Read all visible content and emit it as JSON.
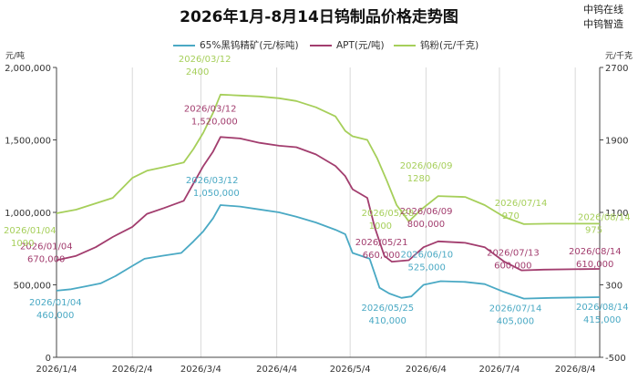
{
  "watermark": [
    "中钨在线",
    "中钨智造"
  ],
  "chart_data": {
    "type": "line",
    "title": "2026年1月-8月14日钨制品价格走势图",
    "left_axis": {
      "unit": "元/吨",
      "min": 0,
      "max": 2000000,
      "ticks": [
        "0",
        "500,000",
        "1,000,000",
        "1,500,000",
        "2,000,000"
      ]
    },
    "right_axis": {
      "unit": "元/千克",
      "min": -500,
      "max": 2700,
      "ticks": [
        "-500",
        "300",
        "1100",
        "1900",
        "2700"
      ]
    },
    "x_ticks": [
      "2026/1/4",
      "2026/2/4",
      "2026/3/4",
      "2026/4/4",
      "2026/5/4",
      "2026/6/4",
      "2026/7/4",
      "2026/8/4"
    ],
    "grid": "vertical",
    "legend_position": "top",
    "series": [
      {
        "name": "65%黑钨精矿(元/标吨)",
        "axis": "left",
        "color": "#4aa9c4",
        "points": [
          [
            "2026-01-04",
            460000
          ],
          [
            "2026-01-10",
            470000
          ],
          [
            "2026-01-16",
            490000
          ],
          [
            "2026-01-22",
            510000
          ],
          [
            "2026-01-28",
            560000
          ],
          [
            "2026-02-03",
            620000
          ],
          [
            "2026-02-09",
            680000
          ],
          [
            "2026-02-16",
            700000
          ],
          [
            "2026-02-24",
            720000
          ],
          [
            "2026-03-01",
            800000
          ],
          [
            "2026-03-05",
            870000
          ],
          [
            "2026-03-09",
            960000
          ],
          [
            "2026-03-12",
            1050000
          ],
          [
            "2026-03-20",
            1040000
          ],
          [
            "2026-03-28",
            1020000
          ],
          [
            "2026-04-05",
            1000000
          ],
          [
            "2026-04-12",
            970000
          ],
          [
            "2026-04-20",
            930000
          ],
          [
            "2026-04-28",
            880000
          ],
          [
            "2026-05-02",
            850000
          ],
          [
            "2026-05-05",
            720000
          ],
          [
            "2026-05-12",
            680000
          ],
          [
            "2026-05-16",
            480000
          ],
          [
            "2026-05-20",
            440000
          ],
          [
            "2026-05-25",
            410000
          ],
          [
            "2026-05-29",
            420000
          ],
          [
            "2026-06-03",
            500000
          ],
          [
            "2026-06-10",
            525000
          ],
          [
            "2026-06-20",
            520000
          ],
          [
            "2026-06-28",
            505000
          ],
          [
            "2026-07-06",
            450000
          ],
          [
            "2026-07-14",
            405000
          ],
          [
            "2026-07-25",
            410000
          ],
          [
            "2026-08-14",
            415000
          ]
        ],
        "labels": [
          {
            "date": "2026/01/04",
            "value": "460,000"
          },
          {
            "date": "2026/03/12",
            "value": "1,050,000"
          },
          {
            "date": "2026/05/25",
            "value": "410,000"
          },
          {
            "date": "2026/06/10",
            "value": "525,000"
          },
          {
            "date": "2026/07/14",
            "value": "405,000"
          },
          {
            "date": "2026/08/14",
            "value": "415,000"
          }
        ]
      },
      {
        "name": "APT(元/吨)",
        "axis": "left",
        "color": "#a23d6e",
        "points": [
          [
            "2026-01-04",
            670000
          ],
          [
            "2026-01-12",
            700000
          ],
          [
            "2026-01-20",
            760000
          ],
          [
            "2026-01-27",
            830000
          ],
          [
            "2026-02-04",
            900000
          ],
          [
            "2026-02-10",
            990000
          ],
          [
            "2026-02-17",
            1030000
          ],
          [
            "2026-02-25",
            1080000
          ],
          [
            "2026-03-01",
            1200000
          ],
          [
            "2026-03-05",
            1320000
          ],
          [
            "2026-03-09",
            1420000
          ],
          [
            "2026-03-12",
            1520000
          ],
          [
            "2026-03-20",
            1510000
          ],
          [
            "2026-03-28",
            1480000
          ],
          [
            "2026-04-05",
            1460000
          ],
          [
            "2026-04-12",
            1450000
          ],
          [
            "2026-04-20",
            1400000
          ],
          [
            "2026-04-28",
            1320000
          ],
          [
            "2026-05-02",
            1250000
          ],
          [
            "2026-05-05",
            1160000
          ],
          [
            "2026-05-11",
            1100000
          ],
          [
            "2026-05-14",
            900000
          ],
          [
            "2026-05-18",
            700000
          ],
          [
            "2026-05-21",
            660000
          ],
          [
            "2026-05-28",
            670000
          ],
          [
            "2026-06-03",
            760000
          ],
          [
            "2026-06-09",
            800000
          ],
          [
            "2026-06-20",
            790000
          ],
          [
            "2026-06-28",
            760000
          ],
          [
            "2026-07-06",
            660000
          ],
          [
            "2026-07-13",
            600000
          ],
          [
            "2026-07-22",
            605000
          ],
          [
            "2026-08-14",
            610000
          ]
        ],
        "labels": [
          {
            "date": "2026/01/04",
            "value": "670,000"
          },
          {
            "date": "2026/03/12",
            "value": "1,520,000"
          },
          {
            "date": "2026/05/21",
            "value": "660,000"
          },
          {
            "date": "2026/06/09",
            "value": "800,000"
          },
          {
            "date": "2026/07/13",
            "value": "600,000"
          },
          {
            "date": "2026/08/14",
            "value": "610,000"
          }
        ]
      },
      {
        "name": "钨粉(元/千克)",
        "axis": "right",
        "color": "#a6cf5a",
        "points": [
          [
            "2026-01-04",
            1090
          ],
          [
            "2026-01-12",
            1130
          ],
          [
            "2026-01-20",
            1200
          ],
          [
            "2026-01-27",
            1260
          ],
          [
            "2026-02-04",
            1480
          ],
          [
            "2026-02-10",
            1560
          ],
          [
            "2026-02-17",
            1600
          ],
          [
            "2026-02-25",
            1650
          ],
          [
            "2026-03-01",
            1800
          ],
          [
            "2026-03-05",
            1980
          ],
          [
            "2026-03-09",
            2200
          ],
          [
            "2026-03-12",
            2400
          ],
          [
            "2026-03-20",
            2390
          ],
          [
            "2026-03-28",
            2380
          ],
          [
            "2026-04-05",
            2360
          ],
          [
            "2026-04-12",
            2330
          ],
          [
            "2026-04-20",
            2260
          ],
          [
            "2026-04-28",
            2160
          ],
          [
            "2026-05-02",
            2000
          ],
          [
            "2026-05-05",
            1940
          ],
          [
            "2026-05-11",
            1900
          ],
          [
            "2026-05-15",
            1700
          ],
          [
            "2026-05-19",
            1450
          ],
          [
            "2026-05-23",
            1180
          ],
          [
            "2026-05-28",
            1000
          ],
          [
            "2026-06-02",
            1130
          ],
          [
            "2026-06-09",
            1280
          ],
          [
            "2026-06-20",
            1270
          ],
          [
            "2026-06-28",
            1180
          ],
          [
            "2026-07-06",
            1050
          ],
          [
            "2026-07-14",
            970
          ],
          [
            "2026-07-25",
            975
          ],
          [
            "2026-08-14",
            975
          ]
        ],
        "labels": [
          {
            "date": "2026/01/04",
            "value": "1090"
          },
          {
            "date": "2026/03/12",
            "value": "2400"
          },
          {
            "date": "2026/05/28",
            "value": "1000"
          },
          {
            "date": "2026/06/09",
            "value": "1280"
          },
          {
            "date": "2026/07/14",
            "value": "970"
          },
          {
            "date": "2026/08/14",
            "value": "975"
          }
        ]
      }
    ]
  }
}
